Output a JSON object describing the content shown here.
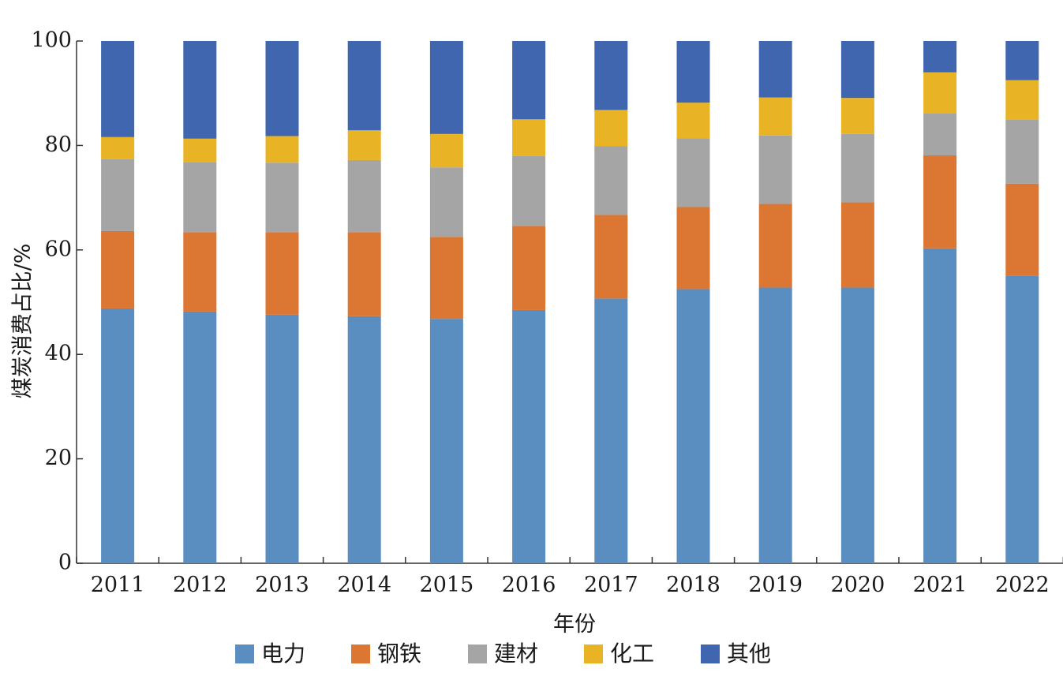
{
  "chart_data": {
    "type": "bar",
    "stacked": true,
    "xlabel": "年份",
    "ylabel": "煤炭消费占比/%",
    "ylim": [
      0,
      100
    ],
    "yticks": [
      0,
      20,
      40,
      60,
      80,
      100
    ],
    "categories": [
      "2011",
      "2012",
      "2013",
      "2014",
      "2015",
      "2016",
      "2017",
      "2018",
      "2019",
      "2020",
      "2021",
      "2022"
    ],
    "series": [
      {
        "name": "电力",
        "color": "#5A8DC0",
        "values": [
          48.8,
          48.2,
          47.6,
          47.3,
          46.8,
          48.5,
          50.7,
          52.5,
          52.8,
          52.8,
          60.3,
          55.0
        ]
      },
      {
        "name": "钢铁",
        "color": "#DC7633",
        "values": [
          14.8,
          15.2,
          15.8,
          16.1,
          15.7,
          16.1,
          16.0,
          15.7,
          16.0,
          16.3,
          17.8,
          17.7
        ]
      },
      {
        "name": "建材",
        "color": "#A5A5A5",
        "values": [
          13.8,
          13.4,
          13.3,
          13.8,
          13.3,
          13.4,
          13.2,
          13.2,
          13.1,
          13.1,
          8.1,
          12.2
        ]
      },
      {
        "name": "化工",
        "color": "#E8B425",
        "values": [
          4.2,
          4.5,
          5.1,
          5.7,
          6.4,
          7.0,
          6.9,
          6.8,
          7.3,
          6.9,
          7.8,
          7.6
        ]
      },
      {
        "name": "其他",
        "color": "#3F66AE",
        "values": [
          18.4,
          18.7,
          18.2,
          17.1,
          17.8,
          15.0,
          13.2,
          11.8,
          10.8,
          10.9,
          6.0,
          7.5
        ]
      }
    ],
    "legend_position": "bottom"
  }
}
